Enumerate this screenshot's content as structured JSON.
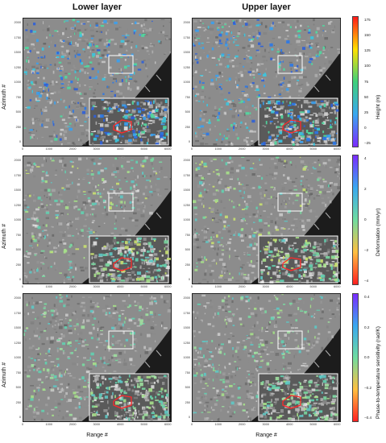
{
  "columns": {
    "left": "Lower layer",
    "right": "Upper layer"
  },
  "y_axis_label": "Azimuth #",
  "x_axis_label": "Range #",
  "y_ticks": [
    "2000",
    "1750",
    "1500",
    "1250",
    "1000",
    "750",
    "500",
    "250",
    "0"
  ],
  "x_ticks": [
    "0",
    "1000",
    "2000",
    "3000",
    "4000",
    "5000",
    "6000"
  ],
  "colorbars": [
    {
      "label": "Height (m)",
      "ticks": [
        "175",
        "150",
        "125",
        "100",
        "75",
        "50",
        "25",
        "0",
        "−25"
      ],
      "colors": [
        "#ff1a1a",
        "#ffe000",
        "#3fd07a",
        "#39a8f0",
        "#7a2cff"
      ]
    },
    {
      "label": "Deformation (mm/yr)",
      "ticks": [
        "4",
        "2",
        "0",
        "−2",
        "−4"
      ],
      "colors": [
        "#7a2cff",
        "#39a8f0",
        "#6fdca0",
        "#ffc040",
        "#ff2020"
      ]
    },
    {
      "label": "Phase-to-temperature sensitivity (rad/K)",
      "ticks": [
        "0.4",
        "0.2",
        "0.0",
        "−0.2",
        "−0.4"
      ],
      "colors": [
        "#7a2cff",
        "#39a8f0",
        "#6fdca0",
        "#ffc040",
        "#ff2020"
      ]
    }
  ]
}
